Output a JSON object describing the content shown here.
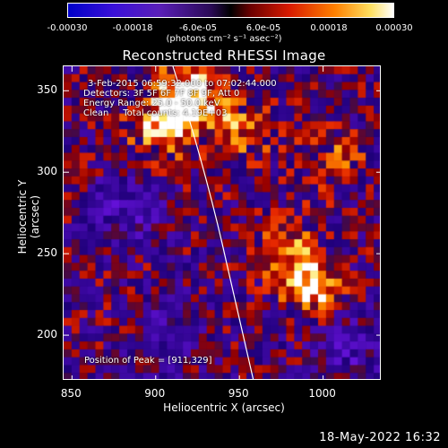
{
  "colorbar": {
    "ticks": [
      {
        "label": "-0.00030",
        "value": -0.0003
      },
      {
        "label": "-0.00018",
        "value": -0.00018
      },
      {
        "label": "-6.0e-05",
        "value": -6e-05
      },
      {
        "label": "6.0e-05",
        "value": 6e-05
      },
      {
        "label": "0.00018",
        "value": 0.00018
      },
      {
        "label": "0.00030",
        "value": 0.0003
      }
    ],
    "range": [
      -0.0003,
      0.0003
    ],
    "unit_label": "(photons cm⁻² s⁻¹ asec⁻²)"
  },
  "plot": {
    "title": "Reconstructed RHESSI Image",
    "annotations": {
      "time_range": "3-Feb-2015 06:59:32.000 to 07:02:44.000",
      "detectors": "Detectors: 3F 5F 6F 7F 8F 9F, Att 0",
      "energy_range": "Energy Range: 25.0 - 50.0 keV",
      "method": "Clean     Total counts: 4.19E+03",
      "peak": "Position of Peak = [911,329]"
    },
    "x_axis": {
      "label": "Heliocentric X (arcsec)",
      "range": [
        845,
        1035
      ],
      "ticks": [
        {
          "label": "850",
          "value": 850
        },
        {
          "label": "900",
          "value": 900
        },
        {
          "label": "950",
          "value": 950
        },
        {
          "label": "1000",
          "value": 1000
        }
      ]
    },
    "y_axis": {
      "label": "Heliocentric Y (arcsec)",
      "range": [
        172,
        365
      ],
      "ticks": [
        {
          "label": "200",
          "value": 200
        },
        {
          "label": "250",
          "value": 250
        },
        {
          "label": "300",
          "value": 300
        },
        {
          "label": "350",
          "value": 350
        }
      ]
    },
    "colors": {
      "limb_line": "#ffffff"
    }
  },
  "footer": {
    "date": "18-May-2022 16:32"
  }
}
